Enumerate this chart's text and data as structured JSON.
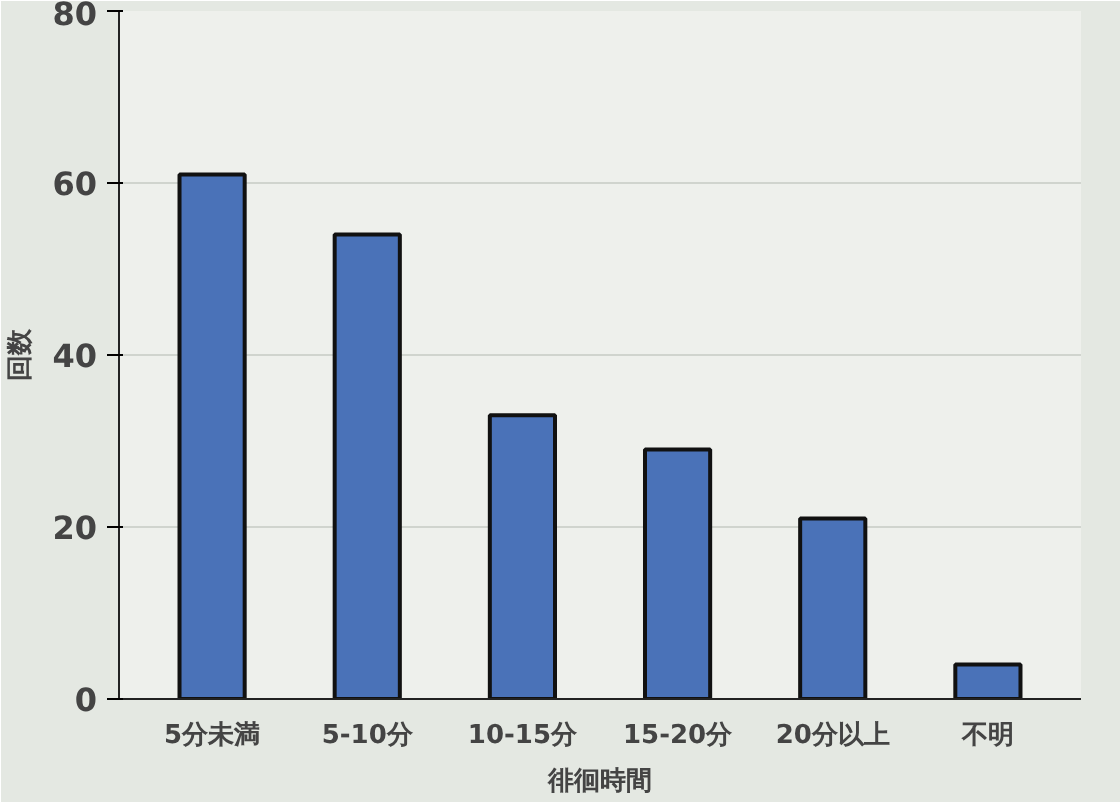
{
  "chart_data": {
    "type": "bar",
    "xlabel": "徘徊時間",
    "ylabel": "回数",
    "categories": [
      "5分未満",
      "5-10分",
      "10-15分",
      "15-20分",
      "20分以上",
      "不明"
    ],
    "values": [
      61,
      54,
      33,
      29,
      21,
      4
    ],
    "color": "#4a72b8",
    "ylim": [
      0,
      80
    ],
    "yticks": [
      0,
      20,
      40,
      60,
      80
    ],
    "grid": "y"
  }
}
